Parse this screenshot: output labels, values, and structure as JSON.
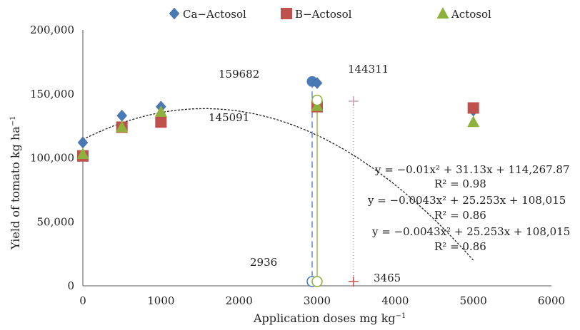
{
  "chart_data": {
    "type": "scatter",
    "xlabel": "Application doses mg kg",
    "xlabel_sup": "−1",
    "ylabel": "Yield of tomato kg ha",
    "ylabel_sup": "−1",
    "xlim": [
      0,
      6000
    ],
    "ylim": [
      0,
      200000
    ],
    "x_ticks": [
      0,
      1000,
      2000,
      3000,
      4000,
      5000,
      6000
    ],
    "x_tick_labels": [
      "0",
      "1000",
      "2000",
      "3000",
      "4000",
      "5000",
      "6000"
    ],
    "y_ticks": [
      0,
      50000,
      100000,
      150000,
      200000
    ],
    "y_tick_labels": [
      "0",
      "50,000",
      "100,000",
      "150,000",
      "200,000"
    ],
    "grid": false,
    "legend_position": "top",
    "series": [
      {
        "name": "Ca−Actosol",
        "marker": "diamond",
        "color": "#4a7ab5",
        "x": [
          0,
          500,
          1000,
          5000
        ],
        "y": [
          112000,
          133000,
          140000,
          137000
        ]
      },
      {
        "name": "B−Actosol",
        "marker": "square",
        "color": "#c0504d",
        "x": [
          0,
          500,
          1000,
          3000,
          5000
        ],
        "y": [
          101500,
          124000,
          128000,
          140000,
          139000
        ]
      },
      {
        "name": "Actosol",
        "marker": "triangle",
        "color": "#8db13a",
        "x": [
          0,
          500,
          1000,
          3000,
          5000
        ],
        "y": [
          103000,
          124000,
          136000,
          140500,
          128000
        ]
      }
    ],
    "fit_curve": {
      "equation": "y = −0.01x² + 31.13x + 114,267.87",
      "coefficients": [
        -0.01,
        31.13,
        114267.87
      ],
      "x_range": [
        0,
        5000
      ]
    },
    "optimum_points": [
      {
        "x": 2936,
        "y": 159682,
        "color": "#4a7ab5"
      },
      {
        "x": 3000,
        "y": 158500,
        "color": "#4a7ab5",
        "marker": "diamond"
      },
      {
        "x": 3000,
        "y": 145091,
        "color": "#8db13a"
      },
      {
        "x": 3465,
        "y": 144311,
        "color": "#c0504d"
      }
    ],
    "drop_lines": [
      {
        "x": 2936,
        "y_top": 159682,
        "color": "#4a7ab5",
        "style": "dashed",
        "bottom_marker": "circle"
      },
      {
        "x": 3000,
        "y_top": 145091,
        "color": "#8db13a",
        "style": "solid",
        "bottom_marker": "circle"
      },
      {
        "x": 3465,
        "y_top": 144311,
        "color": "#b08aa0",
        "style": "dotted",
        "bottom_marker": "plus"
      }
    ],
    "annotations": {
      "val_159682": "159682",
      "val_144311": "144311",
      "val_145091": "145091",
      "val_2936": "2936",
      "val_3465": "3465"
    },
    "equations": [
      {
        "eq": "y = −0.01x² + 31.13x + 114,267.87",
        "r2": "R² = 0.98"
      },
      {
        "eq": "y = −0.0043x² + 25.253x + 108,015",
        "r2": "R² = 0.86"
      },
      {
        "eq": "y = −0.0043x² + 25.253x + 108,015",
        "r2": "R² = 0.86"
      }
    ]
  }
}
